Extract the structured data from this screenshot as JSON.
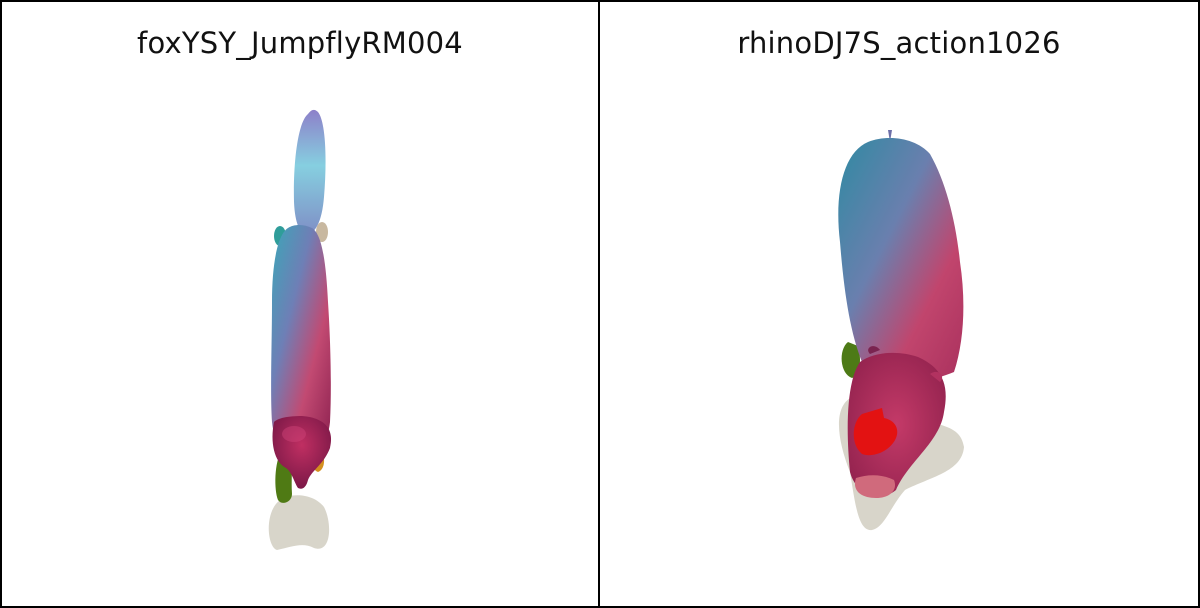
{
  "panels": [
    {
      "title": "foxYSY_JumpflyRM004",
      "subject": "fox-model"
    },
    {
      "title": "rhinoDJ7S_action1026",
      "subject": "rhino-model"
    }
  ],
  "colors": {
    "background": "#ffffff",
    "border": "#000000",
    "shadow": "#d6d3c8",
    "mesh_blue": "#3f8fa6",
    "mesh_pink": "#c2456a",
    "mesh_red": "#e01010",
    "mesh_green": "#4a7a10"
  }
}
